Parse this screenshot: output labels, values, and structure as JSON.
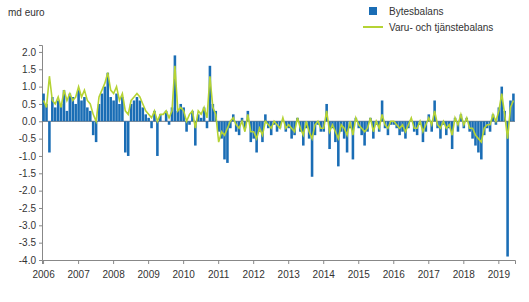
{
  "chart_data": {
    "type": "bar",
    "y_label": "md euro",
    "categories": [
      "2006",
      null,
      null,
      null,
      null,
      null,
      null,
      null,
      null,
      null,
      null,
      null,
      "2007",
      null,
      null,
      null,
      null,
      null,
      null,
      null,
      null,
      null,
      null,
      null,
      "2008",
      null,
      null,
      null,
      null,
      null,
      null,
      null,
      null,
      null,
      null,
      null,
      "2009",
      null,
      null,
      null,
      null,
      null,
      null,
      null,
      null,
      null,
      null,
      null,
      "2010",
      null,
      null,
      null,
      null,
      null,
      null,
      null,
      null,
      null,
      null,
      null,
      "2011",
      null,
      null,
      null,
      null,
      null,
      null,
      null,
      null,
      null,
      null,
      null,
      "2012",
      null,
      null,
      null,
      null,
      null,
      null,
      null,
      null,
      null,
      null,
      null,
      "2013",
      null,
      null,
      null,
      null,
      null,
      null,
      null,
      null,
      null,
      null,
      null,
      "2014",
      null,
      null,
      null,
      null,
      null,
      null,
      null,
      null,
      null,
      null,
      null,
      "2015",
      null,
      null,
      null,
      null,
      null,
      null,
      null,
      null,
      null,
      null,
      null,
      "2016",
      null,
      null,
      null,
      null,
      null,
      null,
      null,
      null,
      null,
      null,
      null,
      "2017",
      null,
      null,
      null,
      null,
      null,
      null,
      null,
      null,
      null,
      null,
      null,
      "2018",
      null,
      null,
      null,
      null,
      null,
      null,
      null,
      null,
      null,
      null,
      null,
      "2019",
      null,
      null,
      null,
      null,
      null
    ],
    "series": [
      {
        "name": "Bytesbalans",
        "type": "bar",
        "color": "#1a6db5",
        "values": [
          0.8,
          0.5,
          -0.9,
          0.7,
          0.4,
          0.6,
          0.5,
          0.9,
          0.3,
          0.8,
          0.7,
          0.5,
          0.9,
          0.6,
          0.7,
          0.4,
          0.3,
          -0.4,
          -0.6,
          0.5,
          0.8,
          1.0,
          1.4,
          0.7,
          0.6,
          0.8,
          0.5,
          0.7,
          -0.9,
          -1.0,
          0.5,
          0.6,
          0.7,
          0.6,
          0.4,
          0.2,
          0.1,
          -0.2,
          0.3,
          -1.0,
          0.2,
          0.0,
          0.3,
          -0.1,
          0.4,
          1.9,
          0.3,
          0.5,
          0.4,
          -0.3,
          -0.1,
          0.3,
          -0.7,
          0.2,
          0.1,
          0.4,
          -0.2,
          1.6,
          0.5,
          0.3,
          -0.3,
          -0.5,
          -1.1,
          -1.2,
          -0.2,
          0.2,
          -0.3,
          -0.4,
          0.1,
          -0.2,
          0.3,
          -0.6,
          -0.5,
          -0.9,
          -0.3,
          -0.6,
          0.2,
          -0.2,
          -0.4,
          -0.1,
          -0.3,
          -0.2,
          0.0,
          -0.3,
          -0.2,
          -0.5,
          -0.4,
          0.1,
          -0.3,
          -0.7,
          -0.2,
          -0.5,
          -1.6,
          -0.4,
          -0.1,
          -0.3,
          -0.3,
          0.5,
          -0.8,
          -0.2,
          -0.6,
          -1.3,
          -0.3,
          -0.5,
          -0.9,
          -0.2,
          -1.1,
          0.1,
          -0.2,
          -0.4,
          -0.7,
          -0.3,
          0.1,
          -0.5,
          -0.1,
          -0.3,
          0.6,
          -0.2,
          -0.4,
          -0.1,
          -0.1,
          -0.2,
          -0.4,
          -0.3,
          -0.5,
          -0.2,
          0.0,
          -0.3,
          -0.4,
          -0.1,
          -0.6,
          -0.3,
          0.2,
          -0.3,
          0.6,
          -0.2,
          -0.5,
          -0.1,
          -0.4,
          -0.2,
          -0.8,
          0.1,
          -0.3,
          0.2,
          -0.2,
          0.1,
          -0.3,
          -0.5,
          -0.7,
          -0.9,
          -1.1,
          -0.4,
          -0.2,
          -0.3,
          0.2,
          -0.1,
          0.4,
          1.0,
          0.3,
          -3.9,
          0.6,
          0.8
        ]
      },
      {
        "name": "Varu- och tjänstebalans",
        "type": "line",
        "color": "#b5d334",
        "values": [
          0.6,
          0.4,
          1.3,
          0.6,
          0.5,
          0.7,
          0.4,
          0.9,
          0.6,
          0.8,
          0.6,
          0.7,
          1.0,
          0.7,
          0.9,
          0.6,
          0.5,
          0.2,
          0.0,
          0.7,
          0.9,
          1.1,
          1.4,
          0.9,
          0.8,
          1.0,
          0.6,
          0.8,
          0.3,
          0.2,
          0.6,
          0.7,
          0.8,
          0.7,
          0.5,
          0.3,
          0.2,
          0.1,
          0.3,
          0.0,
          0.2,
          0.2,
          0.3,
          0.1,
          0.3,
          1.6,
          0.3,
          0.4,
          0.3,
          0.0,
          0.2,
          0.3,
          -0.2,
          0.3,
          0.2,
          0.4,
          0.1,
          1.3,
          0.4,
          0.2,
          -0.6,
          -0.3,
          -0.4,
          -0.2,
          0.0,
          0.1,
          -0.1,
          -0.2,
          0.0,
          -0.3,
          0.2,
          -0.3,
          -0.3,
          -0.5,
          -0.2,
          -0.4,
          0.0,
          -0.1,
          -0.2,
          0.0,
          -0.1,
          -0.2,
          0.1,
          -0.2,
          -0.1,
          -0.2,
          -0.3,
          0.1,
          -0.2,
          -0.4,
          0.0,
          -0.3,
          -0.5,
          -0.1,
          0.0,
          -0.2,
          -0.2,
          0.3,
          -0.3,
          -0.1,
          -0.3,
          -0.5,
          -0.1,
          -0.2,
          -0.4,
          0.0,
          -0.4,
          0.1,
          -0.1,
          -0.2,
          -0.3,
          -0.2,
          0.1,
          -0.3,
          0.0,
          -0.2,
          0.2,
          -0.1,
          -0.2,
          0.0,
          0.0,
          -0.1,
          -0.2,
          -0.1,
          -0.3,
          -0.1,
          0.1,
          -0.2,
          -0.2,
          0.0,
          -0.3,
          -0.1,
          0.1,
          -0.1,
          0.3,
          -0.1,
          -0.2,
          0.0,
          -0.2,
          -0.1,
          -0.4,
          0.1,
          -0.1,
          0.2,
          -0.1,
          0.1,
          -0.2,
          -0.2,
          -0.4,
          -0.5,
          -0.6,
          -0.2,
          -0.1,
          -0.1,
          0.2,
          0.0,
          0.3,
          0.8,
          0.2,
          -0.5,
          0.4,
          0.6
        ]
      }
    ],
    "ylim": [
      -4.0,
      2.2
    ],
    "yticks": [
      {
        "value": -4.0,
        "label": "-4.0"
      },
      {
        "value": -3.5,
        "label": "-3.5"
      },
      {
        "value": -3.0,
        "label": "-3.0"
      },
      {
        "value": -2.5,
        "label": "-2.5"
      },
      {
        "value": -2.0,
        "label": "-2.0"
      },
      {
        "value": -1.5,
        "label": "-1.5"
      },
      {
        "value": -1.0,
        "label": "-1.0"
      },
      {
        "value": -0.5,
        "label": "-0.5"
      },
      {
        "value": 0.0,
        "label": "0.0"
      },
      {
        "value": 0.5,
        "label": "0.5"
      },
      {
        "value": 1.0,
        "label": "1.0"
      },
      {
        "value": 1.5,
        "label": "1.5"
      },
      {
        "value": 2.0,
        "label": "2.0"
      }
    ],
    "grid": false,
    "legend": "top-right"
  }
}
